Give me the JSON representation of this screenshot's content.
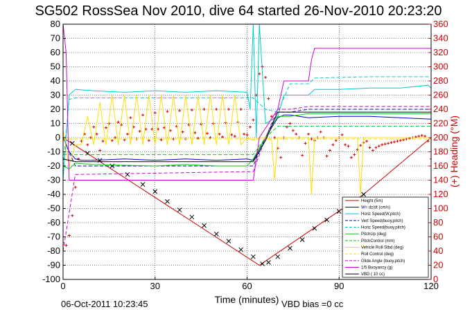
{
  "chart_data": {
    "type": "line",
    "title": "SG502 RossSea Nov 2010, dive 64 started 26-Nov-2010 20:23:20",
    "xlabel": "Time (minutes)",
    "ylabel_right": "(+) Heading (°M)",
    "xlim": [
      0,
      120
    ],
    "ylim": [
      -100,
      80
    ],
    "ylim_right": [
      0,
      360
    ],
    "x_ticks": [
      0,
      30,
      60,
      90,
      120
    ],
    "y_ticks": [
      -100,
      -90,
      -80,
      -70,
      -60,
      -50,
      -40,
      -30,
      -20,
      -10,
      0,
      10,
      20,
      30,
      40,
      50,
      60,
      70,
      80
    ],
    "y_ticks_right": [
      0,
      20,
      40,
      60,
      80,
      100,
      120,
      140,
      160,
      180,
      200,
      220,
      240,
      260,
      280,
      300,
      320,
      340,
      360
    ],
    "grid": true,
    "legend_position": "bottom-right",
    "footer_left": "06-Oct-2011 10:23:45",
    "footer_right": "VBD bias =0 cc",
    "legend": [
      {
        "label": "Height (5m)",
        "color": "#cc0000",
        "dash": ""
      },
      {
        "label": "W= dz/dt (cm/s)",
        "color": "#0000cc",
        "dash": ""
      },
      {
        "label": "Horiz Speed(W,pitch)",
        "color": "#00cccc",
        "dash": ""
      },
      {
        "label": "Vert Speed(buoy,pitch)",
        "color": "#0000cc",
        "dash": "4,2"
      },
      {
        "label": "Horiz Speed(buoy,pitch)",
        "color": "#00cccc",
        "dash": "4,2"
      },
      {
        "label": "PitchUp (deg)",
        "color": "#00cc00",
        "dash": ""
      },
      {
        "label": "PitchControl (mm)",
        "color": "#00cc00",
        "dash": "4,2"
      },
      {
        "label": "Vehicle Roll Stbd (deg)",
        "color": "#ffdd00",
        "dash": ""
      },
      {
        "label": "Roll Control (deg)",
        "color": "#ffdd00",
        "dash": "4,2"
      },
      {
        "label": "Glide Angle (buoy,pitch)",
        "color": "#cc00cc",
        "dash": "4,2"
      },
      {
        "label": "1/5 Buoyancy (g)",
        "color": "#cc00cc",
        "dash": ""
      },
      {
        "label": "VBD ( 10 cc)",
        "color": "#000000",
        "dash": ""
      }
    ],
    "series": [
      {
        "name": "Height (5m)",
        "color": "#cc0000",
        "marker": "line",
        "x": [
          0,
          64,
          98,
          120
        ],
        "y": [
          0,
          -90,
          -40,
          0
        ]
      },
      {
        "name": "Depth markers",
        "color": "#000000",
        "marker": "x",
        "x": [
          3,
          8,
          12,
          16,
          21,
          26,
          30,
          34,
          38,
          42,
          46,
          50,
          54,
          58,
          62,
          65,
          67,
          70,
          74,
          78,
          82,
          86,
          90,
          94,
          98
        ],
        "y": [
          -4,
          -11,
          -16,
          -20,
          -26,
          -33,
          -38,
          -45,
          -51,
          -56,
          -62,
          -68,
          -73,
          -79,
          -84,
          -89,
          -88,
          -84,
          -78,
          -72,
          -64,
          -58,
          -52,
          -46,
          -40
        ]
      },
      {
        "name": "Heading",
        "color": "#cc0000",
        "marker": "plus",
        "axis": "right",
        "x": [
          0,
          1,
          2,
          3,
          4,
          5,
          6,
          7,
          8,
          9,
          10,
          11,
          12,
          13,
          14,
          15,
          16,
          17,
          18,
          19,
          20,
          21,
          22,
          23,
          24,
          25,
          26,
          27,
          28,
          29,
          30,
          31,
          32,
          33,
          34,
          35,
          36,
          37,
          38,
          39,
          40,
          41,
          42,
          43,
          44,
          45,
          46,
          47,
          48,
          49,
          50,
          51,
          52,
          53,
          54,
          55,
          56,
          57,
          58,
          59,
          60,
          61,
          62,
          63,
          64,
          65,
          66,
          67,
          68,
          69,
          70,
          71,
          72,
          73,
          74,
          75,
          76,
          77,
          78,
          79,
          80,
          81,
          82,
          83,
          84,
          85,
          86,
          87,
          88,
          89,
          90,
          91,
          92,
          93,
          94,
          95,
          96,
          97,
          98,
          99,
          100,
          101,
          102,
          103,
          104,
          105,
          106,
          107,
          108,
          109,
          110,
          111,
          112,
          113,
          114,
          115,
          116,
          117,
          118,
          119,
          120
        ],
        "y": [
          52,
          48,
          62,
          90,
          130,
          170,
          195,
          205,
          190,
          200,
          215,
          205,
          182,
          195,
          214,
          220,
          196,
          200,
          222,
          218,
          197,
          205,
          228,
          215,
          198,
          209,
          232,
          212,
          196,
          212,
          235,
          212,
          197,
          214,
          237,
          210,
          198,
          216,
          238,
          208,
          198,
          218,
          239,
          207,
          199,
          219,
          240,
          206,
          200,
          220,
          240,
          205,
          201,
          221,
          240,
          204,
          202,
          222,
          240,
          205,
          204,
          215,
          225,
          260,
          290,
          300,
          285,
          255,
          230,
          200,
          185,
          172,
          200,
          215,
          220,
          210,
          205,
          200,
          175,
          192,
          205,
          198,
          196,
          200,
          208,
          200,
          174,
          182,
          190,
          196,
          200,
          204,
          190,
          188,
          172,
          176,
          183,
          189,
          193,
          195,
          186,
          182,
          186,
          188,
          190,
          191,
          192,
          193,
          194,
          195,
          196,
          197,
          198,
          199,
          200,
          201,
          202,
          203,
          202,
          195,
          170
        ]
      },
      {
        "name": "Horiz Speed(W,pitch)",
        "color": "#00cccc",
        "marker": "line",
        "x": [
          0,
          2,
          4,
          10,
          20,
          30,
          40,
          50,
          60,
          61,
          62,
          63,
          64,
          66,
          70,
          72,
          74,
          80,
          82,
          90,
          100,
          110,
          119,
          120
        ],
        "y": [
          -30,
          30,
          34,
          33,
          32,
          33,
          32,
          33,
          32,
          20,
          80,
          0,
          80,
          10,
          15,
          30,
          30,
          30,
          34,
          34,
          35,
          35,
          37,
          35
        ]
      },
      {
        "name": "Horiz Speed(buoy,pitch)",
        "color": "#00cccc",
        "marker": "dash",
        "x": [
          0,
          2,
          4,
          60,
          62,
          66,
          70,
          74,
          80,
          82,
          100,
          120
        ],
        "y": [
          -20,
          27,
          28,
          28,
          28,
          20,
          18,
          38,
          38,
          42,
          43,
          43
        ]
      },
      {
        "name": "W= dz/dt (cm/s)",
        "color": "#0000cc",
        "marker": "line",
        "x": [
          0,
          2,
          4,
          6,
          10,
          20,
          30,
          40,
          50,
          60,
          62,
          66,
          70,
          72,
          74,
          80,
          90,
          100,
          110,
          120
        ],
        "y": [
          0,
          -10,
          -15,
          -16,
          -16,
          -15,
          -16,
          -15,
          -16,
          -15,
          -16,
          0,
          14,
          16,
          16,
          14,
          15,
          15,
          14,
          13
        ]
      },
      {
        "name": "Vert Speed(buoy,pitch)",
        "color": "#0000cc",
        "marker": "dash",
        "x": [
          0,
          4,
          60,
          62,
          66,
          70,
          74,
          80,
          120
        ],
        "y": [
          0,
          -20,
          -20,
          -20,
          0,
          18,
          18,
          20,
          20
        ]
      },
      {
        "name": "PitchUp (deg)",
        "color": "#00cc00",
        "marker": "line",
        "x": [
          0,
          2,
          4,
          10,
          30,
          40,
          50,
          60,
          62,
          66,
          70,
          74,
          80,
          82,
          100,
          120
        ],
        "y": [
          -20,
          -22,
          -18,
          -19,
          -20,
          -19,
          -20,
          -20,
          -15,
          0,
          15,
          15,
          17,
          17,
          17,
          17
        ]
      },
      {
        "name": "PitchControl (mm)",
        "color": "#00cc00",
        "marker": "dash",
        "x": [
          0,
          4,
          60,
          62,
          66,
          70,
          74,
          120
        ],
        "y": [
          -12,
          -12,
          -12,
          -12,
          0,
          8,
          8,
          8
        ]
      },
      {
        "name": "Vehicle Roll Stbd (deg)",
        "color": "#ffdd00",
        "marker": "line",
        "x": [
          0,
          2,
          4,
          6,
          8,
          10,
          12,
          14,
          16,
          18,
          20,
          22,
          24,
          26,
          28,
          30,
          32,
          34,
          36,
          38,
          40,
          42,
          44,
          46,
          48,
          50,
          52,
          54,
          56,
          58,
          60,
          62,
          64,
          66,
          68,
          69,
          70,
          72,
          74,
          76,
          80,
          81,
          82,
          90,
          96,
          97,
          98,
          110,
          120
        ],
        "y": [
          5,
          -20,
          -5,
          -5,
          15,
          -5,
          25,
          -5,
          30,
          -5,
          30,
          -5,
          30,
          -5,
          30,
          -5,
          30,
          -5,
          30,
          -5,
          30,
          -5,
          30,
          -5,
          30,
          -5,
          30,
          -5,
          30,
          -5,
          0,
          -2,
          0,
          0,
          -2,
          -30,
          0,
          0,
          0,
          0,
          0,
          -40,
          0,
          0,
          0,
          -40,
          0,
          0,
          0
        ]
      },
      {
        "name": "Roll Control (deg)",
        "color": "#ffdd00",
        "marker": "dash",
        "x": [
          0,
          120
        ],
        "y": [
          -1,
          -1
        ]
      },
      {
        "name": "Glide Angle (buoy,pitch)",
        "color": "#cc00cc",
        "marker": "dash",
        "x": [
          0,
          4,
          60,
          62,
          66,
          70,
          74,
          80,
          120
        ],
        "y": [
          -80,
          -26,
          -24,
          -24,
          0,
          20,
          20,
          22,
          22
        ]
      },
      {
        "name": "1/5 Buoyancy (g)",
        "color": "#cc00cc",
        "marker": "line",
        "x": [
          0,
          1,
          2,
          4,
          60,
          62,
          64,
          70,
          72,
          76,
          80,
          81,
          82,
          120
        ],
        "y": [
          80,
          60,
          -30,
          -30,
          -30,
          -30,
          0,
          20,
          40,
          40,
          40,
          55,
          63,
          63
        ]
      },
      {
        "name": "VBD ( 10 cc)",
        "color": "#000000",
        "marker": "line",
        "x": [
          0,
          4,
          60,
          62,
          66,
          70,
          74,
          120
        ],
        "y": [
          -15,
          -17,
          -17,
          -17,
          -2,
          18,
          18,
          18
        ]
      }
    ]
  }
}
